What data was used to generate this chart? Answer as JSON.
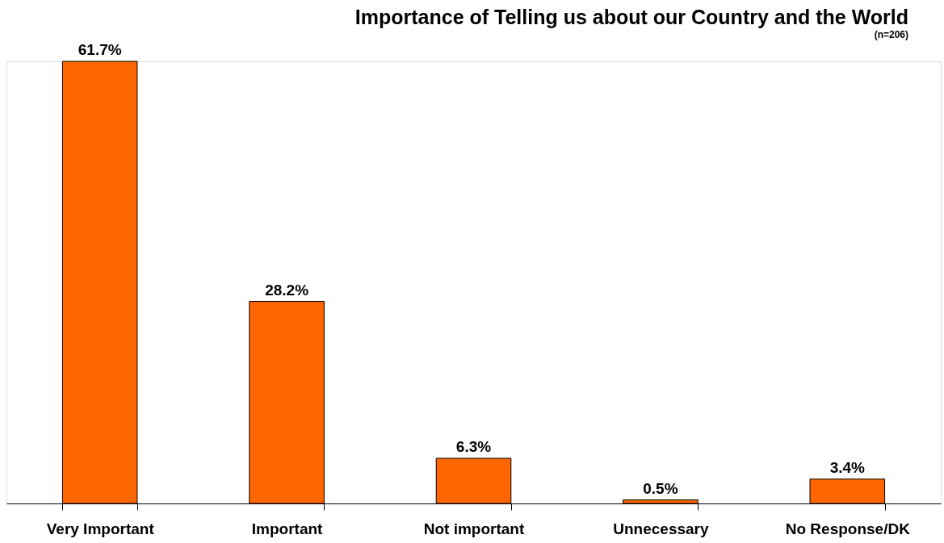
{
  "chart_data": {
    "type": "bar",
    "title": "Importance of Telling us about our Country and the World",
    "subtitle": "(n=206)",
    "categories": [
      "Very Important",
      "Important",
      "Not important",
      "Unnecessary",
      "No Response/DK"
    ],
    "values": [
      61.7,
      28.2,
      6.3,
      0.5,
      3.4
    ],
    "color": "#ff6600",
    "value_labels": [
      "61.7%",
      "28.2%",
      "6.3%",
      "0.5%",
      "3.4%"
    ]
  }
}
